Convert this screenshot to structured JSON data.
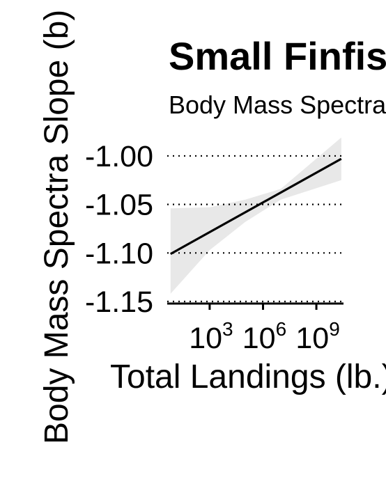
{
  "chart_data": {
    "type": "line",
    "title": "Small Finfish",
    "subtitle": "Body Mass Spectra",
    "xlabel": "Total Landings (lb.)",
    "ylabel": "Body Mass Spectra Slope (b)",
    "x_scale": "log10",
    "xlim_log10": [
      0.3,
      10.8
    ],
    "ylim": [
      -1.155,
      -0.99
    ],
    "x_ticks": [
      {
        "base": "10",
        "exp": "3",
        "log10": 3
      },
      {
        "base": "10",
        "exp": "6",
        "log10": 6
      },
      {
        "base": "10",
        "exp": "9",
        "log10": 9
      }
    ],
    "y_ticks": [
      {
        "label": "-1.00",
        "value": -1.0
      },
      {
        "label": "-1.05",
        "value": -1.05
      },
      {
        "label": "-1.10",
        "value": -1.1
      },
      {
        "label": "-1.15",
        "value": -1.15
      }
    ],
    "grid": {
      "y_major": true,
      "style": "dotted"
    },
    "series": [
      {
        "x_log10": [
          0.8,
          10.4
        ],
        "y": [
          -1.101,
          -1.003
        ],
        "ci_x_log10": [
          0.8,
          3.0,
          5.0,
          7.0,
          10.4
        ],
        "ci_lower": [
          -1.142,
          -1.097,
          -1.068,
          -1.045,
          -1.025
        ],
        "ci_upper": [
          -1.054,
          -1.053,
          -1.045,
          -1.034,
          -0.981
        ]
      }
    ],
    "colors": {
      "line": "#000000",
      "ribbon": "#e8e8e8",
      "grid": "#000000"
    }
  }
}
